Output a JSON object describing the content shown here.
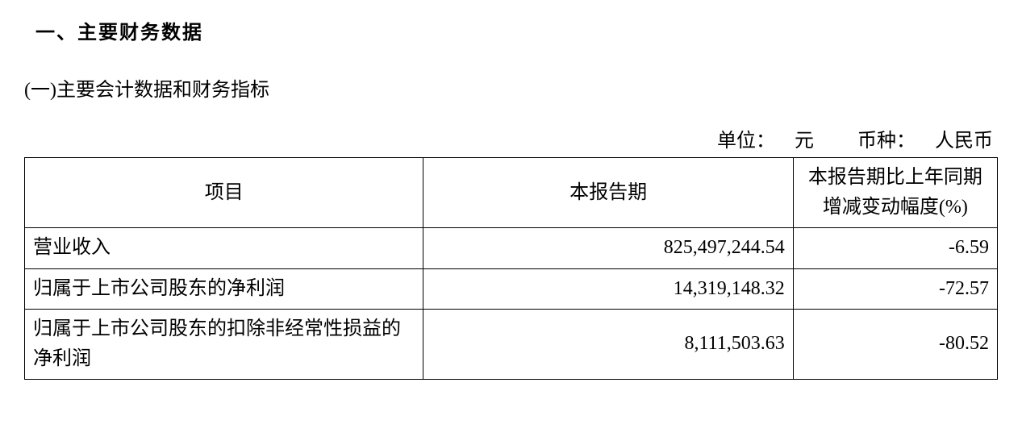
{
  "headings": {
    "section": "一、主要财务数据",
    "subsection": "(一)主要会计数据和财务指标"
  },
  "unit_line": {
    "unit_label": "单位：",
    "unit_value": "元",
    "currency_label": "币种：",
    "currency_value": "人民币"
  },
  "table": {
    "columns": [
      "项目",
      "本报告期",
      "本报告期比上年同期增减变动幅度(%)"
    ],
    "rows": [
      {
        "label": "营业收入",
        "current": "825,497,244.54",
        "change_pct": "-6.59"
      },
      {
        "label": "归属于上市公司股东的净利润",
        "current": "14,319,148.32",
        "change_pct": "-72.57"
      },
      {
        "label": "归属于上市公司股东的扣除非经常性损益的净利润",
        "current": "8,111,503.63",
        "change_pct": "-80.52"
      }
    ],
    "border_color": "#000000",
    "background_color": "#ffffff",
    "text_color": "#000000",
    "font_size_pt": 18,
    "col_widths_pct": [
      41,
      38,
      21
    ]
  }
}
